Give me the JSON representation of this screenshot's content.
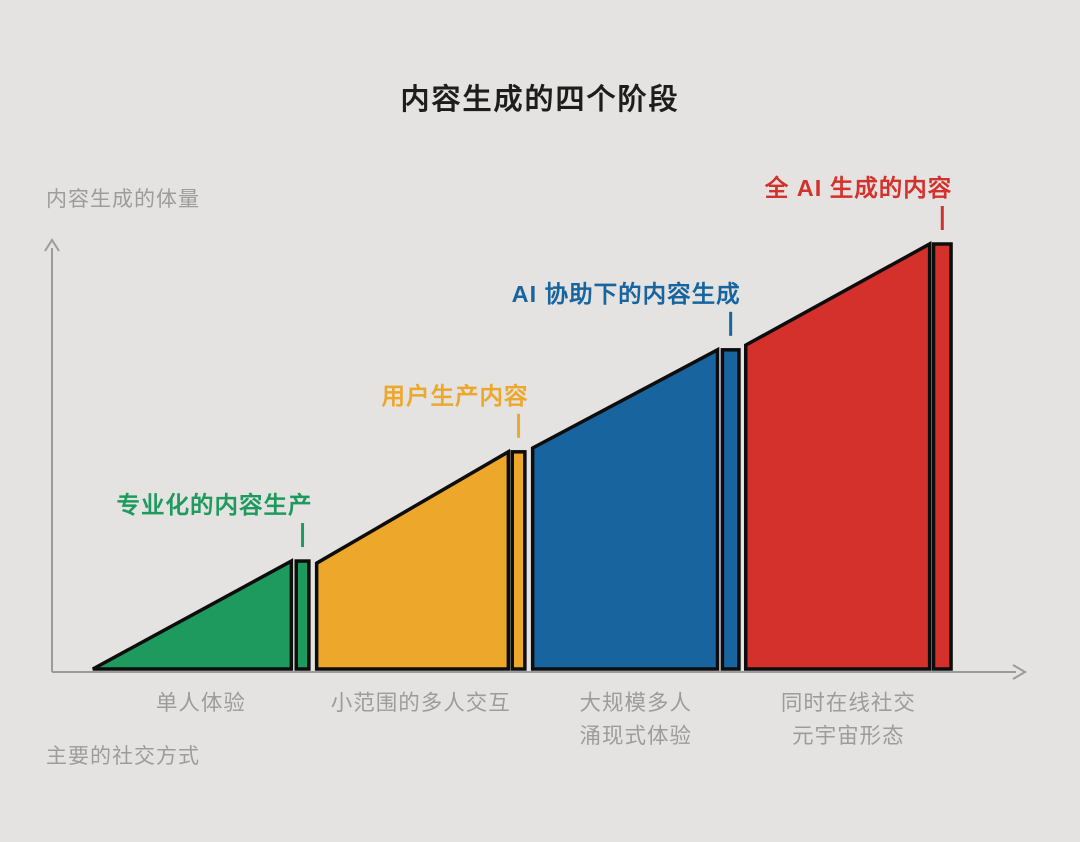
{
  "colors": {
    "background": "#e4e3e1",
    "axis": "#9b9b9b",
    "muted_text": "#9c9c9a",
    "title_text": "#1d1d1b",
    "outline": "#0d0d0d"
  },
  "chart_data": {
    "type": "area",
    "title": "内容生成的四个阶段",
    "ylabel": "内容生成的体量",
    "xlabel": "主要的社交方式",
    "axis": {
      "x_range": [
        0,
        100
      ],
      "y_range": [
        0,
        100
      ],
      "grid": false
    },
    "stages": [
      {
        "name": "专业化的内容生产",
        "x_axis_label": [
          "单人体验"
        ],
        "color": "#1f9a5e",
        "x_start": 4.2,
        "x_end": 24.6,
        "h_start": 0,
        "h_end": 25.4,
        "bar": [
          25.1,
          26.4
        ]
      },
      {
        "name": "用户生产内容",
        "x_axis_label": [
          "小范围的多人交互"
        ],
        "color": "#eda82c",
        "x_start": 27.2,
        "x_end": 46.9,
        "h_start": 24.9,
        "h_end": 51.1,
        "bar": [
          47.3,
          48.6
        ]
      },
      {
        "name": "AI 协助下的内容生成",
        "x_axis_label": [
          "大规模多人",
          "涌现式体验"
        ],
        "color": "#17649f",
        "x_start": 49.4,
        "x_end": 68.4,
        "h_start": 52.0,
        "h_end": 75.1,
        "bar": [
          68.9,
          70.6
        ]
      },
      {
        "name": "全 AI 生成的内容",
        "x_axis_label": [
          "同时在线社交",
          "元宇宙形态"
        ],
        "color": "#d4302c",
        "x_start": 71.3,
        "x_end": 90.2,
        "h_start": 76.2,
        "h_end": 100,
        "bar": [
          90.6,
          92.4
        ]
      }
    ]
  }
}
